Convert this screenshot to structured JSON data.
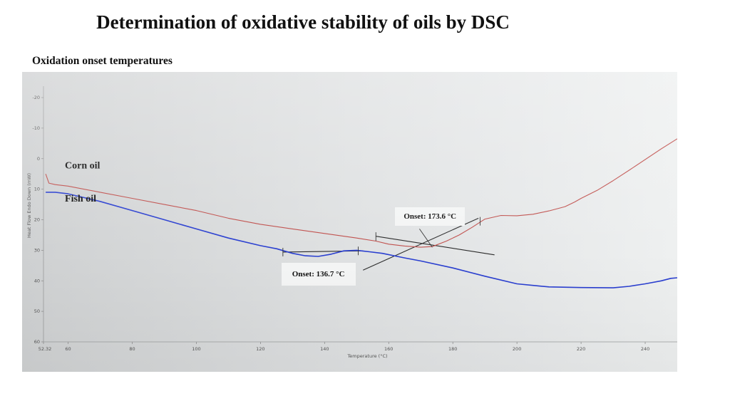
{
  "slide": {
    "title": "Determination of oxidative stability of oils by DSC",
    "subtitle": "Oxidation onset temperatures"
  },
  "chart_data": {
    "type": "line",
    "xlabel": "Temperature (°C)",
    "ylabel": "Heat Flow Endo Down (mW)",
    "xlim": [
      52.32,
      250
    ],
    "ylim": [
      -20,
      60
    ],
    "y_inverted": true,
    "x_ticks": [
      {
        "value": 52.32,
        "label": "52.32"
      },
      {
        "value": 60,
        "label": "60"
      },
      {
        "value": 80,
        "label": "80"
      },
      {
        "value": 100,
        "label": "100"
      },
      {
        "value": 120,
        "label": "120"
      },
      {
        "value": 140,
        "label": "140"
      },
      {
        "value": 160,
        "label": "160"
      },
      {
        "value": 180,
        "label": "180"
      },
      {
        "value": 200,
        "label": "200"
      },
      {
        "value": 220,
        "label": "220"
      },
      {
        "value": 240,
        "label": "240"
      }
    ],
    "y_ticks": [
      {
        "value": -20,
        "label": "-20"
      },
      {
        "value": -10,
        "label": "-10"
      },
      {
        "value": 0,
        "label": "0"
      },
      {
        "value": 10,
        "label": "10"
      },
      {
        "value": 20,
        "label": "20"
      },
      {
        "value": 30,
        "label": "30"
      },
      {
        "value": 40,
        "label": "40"
      },
      {
        "value": 50,
        "label": "50"
      },
      {
        "value": 60,
        "label": "60"
      }
    ],
    "series": [
      {
        "name": "Corn oil",
        "color": "#c0504d",
        "x": [
          53,
          54,
          56,
          60,
          70,
          80,
          90,
          100,
          110,
          120,
          130,
          140,
          150,
          156,
          160,
          165,
          170,
          173.6,
          178,
          182,
          186,
          190,
          195,
          200,
          205,
          210,
          215,
          218,
          220,
          225,
          230,
          235,
          240,
          245,
          250
        ],
        "y": [
          5,
          8,
          8.5,
          9,
          11,
          13,
          15,
          17,
          19.5,
          21.5,
          23,
          24.5,
          26,
          27,
          28,
          28.6,
          29,
          28.8,
          27,
          25,
          22.5,
          19.8,
          18.6,
          18.7,
          18.2,
          17.1,
          15.7,
          14.2,
          13,
          10.4,
          7.2,
          3.8,
          0.3,
          -3.2,
          -6.5
        ]
      },
      {
        "name": "Fish oil",
        "color": "#2a3fd0",
        "x": [
          53,
          56,
          60,
          70,
          80,
          90,
          100,
          110,
          120,
          125,
          130,
          134,
          138,
          142,
          146,
          150,
          154,
          158,
          165,
          170,
          180,
          190,
          200,
          205,
          210,
          220,
          230,
          235,
          240,
          245,
          248,
          250
        ],
        "y": [
          11,
          11,
          11.5,
          14,
          17,
          20,
          23,
          26,
          28.5,
          29.5,
          31,
          31.8,
          32,
          31.3,
          30.2,
          30,
          30.5,
          31,
          32.5,
          33.5,
          35.8,
          38.5,
          41,
          41.5,
          42,
          42.2,
          42.3,
          41.8,
          41,
          40,
          39.2,
          39
        ]
      }
    ],
    "series_labels": [
      {
        "text": "Corn oil",
        "x": 59,
        "y": 3.2
      },
      {
        "text": "Fish oil",
        "x": 59,
        "y": 14
      }
    ],
    "tangents": [
      {
        "x": [
          127,
          152
        ],
        "y": [
          30.6,
          30.2
        ]
      },
      {
        "x": [
          156,
          193
        ],
        "y": [
          25.4,
          31.5
        ]
      },
      {
        "x": [
          152,
          188
        ],
        "y": [
          36.5,
          19.5
        ]
      }
    ],
    "onset_markers": [
      {
        "x": 127,
        "y": 30.6
      },
      {
        "x": 150.5,
        "y": 30.2
      },
      {
        "x": 156,
        "y": 25.5
      },
      {
        "x": 188.5,
        "y": 20.5
      }
    ],
    "pointer": {
      "x": [
        169.6,
        173.6
      ],
      "y": [
        23,
        29
      ]
    },
    "annotations": [
      {
        "text": "Onset: 136.7 °C",
        "x": 126.5,
        "y": 34
      },
      {
        "text": "Onset: 173.6 °C",
        "x": 162,
        "y": 16
      }
    ]
  }
}
